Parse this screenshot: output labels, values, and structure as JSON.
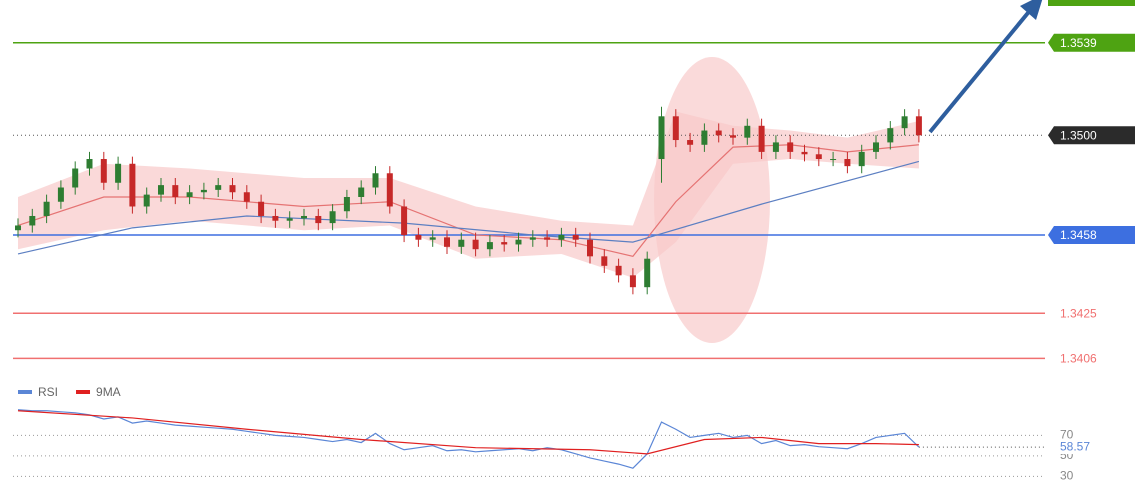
{
  "chart_data": [
    {
      "type": "candlestick",
      "ylim": [
        1.3399,
        1.3557
      ],
      "up_color": "#2e7d32",
      "down_color": "#c62828",
      "open": [
        1.346,
        1.3462,
        1.3466,
        1.3472,
        1.3478,
        1.3486,
        1.349,
        1.348,
        1.3488,
        1.347,
        1.3475,
        1.3479,
        1.3474,
        1.3476,
        1.3477,
        1.3479,
        1.3476,
        1.3472,
        1.3466,
        1.3464,
        1.3465,
        1.3466,
        1.3463,
        1.3468,
        1.3474,
        1.3478,
        1.3484,
        1.347,
        1.3458,
        1.3456,
        1.3457,
        1.3453,
        1.3456,
        1.3452,
        1.3455,
        1.3454,
        1.3456,
        1.3457,
        1.3456,
        1.3458,
        1.3456,
        1.3449,
        1.3445,
        1.3441,
        1.3436,
        1.349,
        1.3508,
        1.3498,
        1.3496,
        1.3502,
        1.35,
        1.3499,
        1.3504,
        1.3493,
        1.3497,
        1.3493,
        1.3492,
        1.349,
        1.349,
        1.3487,
        1.3493,
        1.3497,
        1.3503,
        1.3508
      ],
      "high": [
        1.3465,
        1.3469,
        1.3475,
        1.3481,
        1.3489,
        1.3493,
        1.3493,
        1.3491,
        1.3491,
        1.3478,
        1.3482,
        1.3482,
        1.3479,
        1.348,
        1.3482,
        1.3482,
        1.3479,
        1.3475,
        1.3469,
        1.3468,
        1.3469,
        1.3469,
        1.3471,
        1.3477,
        1.3481,
        1.3487,
        1.3487,
        1.3473,
        1.3461,
        1.346,
        1.346,
        1.3459,
        1.3459,
        1.3458,
        1.3458,
        1.3459,
        1.346,
        1.346,
        1.3461,
        1.3461,
        1.3459,
        1.3452,
        1.3448,
        1.3444,
        1.3451,
        1.3512,
        1.3511,
        1.3501,
        1.3505,
        1.3505,
        1.3503,
        1.3507,
        1.3507,
        1.35,
        1.35,
        1.3496,
        1.3495,
        1.3493,
        1.3493,
        1.3496,
        1.35,
        1.3506,
        1.3511,
        1.3511
      ],
      "low": [
        1.3457,
        1.3459,
        1.3463,
        1.3469,
        1.3475,
        1.3483,
        1.3477,
        1.3477,
        1.3467,
        1.3467,
        1.3472,
        1.3471,
        1.3471,
        1.3473,
        1.3474,
        1.3473,
        1.3469,
        1.3463,
        1.3461,
        1.3461,
        1.3462,
        1.346,
        1.346,
        1.3465,
        1.3471,
        1.3475,
        1.3467,
        1.3455,
        1.3453,
        1.3453,
        1.345,
        1.345,
        1.3449,
        1.3449,
        1.3451,
        1.3451,
        1.3453,
        1.3453,
        1.3453,
        1.3453,
        1.3446,
        1.3442,
        1.3438,
        1.3433,
        1.3433,
        1.348,
        1.3495,
        1.3493,
        1.3493,
        1.3497,
        1.3496,
        1.3496,
        1.349,
        1.349,
        1.349,
        1.3489,
        1.3487,
        1.3487,
        1.3484,
        1.3484,
        1.349,
        1.3494,
        1.35,
        1.3497
      ],
      "close": [
        1.3462,
        1.3466,
        1.3472,
        1.3478,
        1.3486,
        1.349,
        1.348,
        1.3488,
        1.347,
        1.3475,
        1.3479,
        1.3474,
        1.3476,
        1.3477,
        1.3479,
        1.3476,
        1.3472,
        1.3466,
        1.3464,
        1.3465,
        1.3466,
        1.3463,
        1.3468,
        1.3474,
        1.3478,
        1.3484,
        1.347,
        1.3458,
        1.3456,
        1.3457,
        1.3453,
        1.3456,
        1.3452,
        1.3455,
        1.3454,
        1.3456,
        1.3457,
        1.3456,
        1.3458,
        1.3456,
        1.3449,
        1.3445,
        1.3441,
        1.3436,
        1.3448,
        1.3508,
        1.3498,
        1.3496,
        1.3502,
        1.35,
        1.3499,
        1.3504,
        1.3493,
        1.3497,
        1.3493,
        1.3492,
        1.349,
        1.349,
        1.3487,
        1.3493,
        1.3497,
        1.3503,
        1.3508,
        1.35
      ],
      "band": {
        "color": "#f8c9c9",
        "x": [
          0,
          6,
          12,
          20,
          26,
          32,
          38,
          43,
          46,
          50,
          54,
          58,
          63
        ],
        "upper": [
          1.3474,
          1.3488,
          1.3486,
          1.3482,
          1.3482,
          1.347,
          1.3464,
          1.3462,
          1.351,
          1.3504,
          1.3502,
          1.3499,
          1.3506
        ],
        "lower": [
          1.3452,
          1.346,
          1.3464,
          1.346,
          1.3462,
          1.3448,
          1.345,
          1.344,
          1.3455,
          1.3488,
          1.349,
          1.3488,
          1.3486
        ]
      },
      "lines": [
        {
          "color": "#e57373",
          "x": [
            0,
            6,
            12,
            20,
            26,
            32,
            38,
            43,
            46,
            50,
            54,
            58,
            63
          ],
          "values": [
            1.3462,
            1.3474,
            1.3474,
            1.347,
            1.3472,
            1.3458,
            1.3456,
            1.3449,
            1.3472,
            1.3495,
            1.3496,
            1.3493,
            1.3496
          ]
        },
        {
          "color": "#5c7fc2",
          "x": [
            0,
            8,
            16,
            27,
            36,
            43,
            52,
            63
          ],
          "values": [
            1.345,
            1.3461,
            1.3466,
            1.3463,
            1.3458,
            1.3455,
            1.3471,
            1.3489
          ]
        }
      ],
      "levels": [
        {
          "value": 1.3539,
          "color": "#4ea312",
          "badge": true,
          "dotted": false
        },
        {
          "value": 1.35,
          "label": "1.3500",
          "color": "#2b2b2b",
          "badge": true,
          "dotted": true
        },
        {
          "value": 1.3458,
          "color": "#3d6fe0",
          "badge": true,
          "dotted": false
        },
        {
          "value": 1.3425,
          "color": "#f07070",
          "badge": false,
          "dotted": false
        },
        {
          "value": 1.3406,
          "color": "#f07070",
          "badge": false,
          "dotted": false
        }
      ]
    },
    {
      "type": "line",
      "ylim": [
        7,
        124
      ],
      "yticks": [
        70,
        50,
        30
      ],
      "series": [
        {
          "name": "RSI",
          "color": "#5b86d6",
          "x": [
            0,
            1,
            2,
            3,
            4,
            5,
            6,
            7,
            8,
            9,
            10,
            11,
            12,
            13,
            14,
            15,
            16,
            17,
            18,
            19,
            20,
            21,
            22,
            23,
            24,
            25,
            26,
            27,
            28,
            29,
            30,
            31,
            32,
            33,
            34,
            35,
            36,
            37,
            38,
            39,
            40,
            41,
            42,
            43,
            44,
            45,
            46,
            47,
            48,
            49,
            50,
            51,
            52,
            53,
            54,
            55,
            56,
            57,
            58,
            59,
            60,
            61,
            62,
            63
          ],
          "values": [
            95,
            94,
            94,
            93,
            92,
            90,
            86,
            88,
            82,
            84,
            82,
            80,
            79,
            78,
            77,
            76,
            74,
            72,
            70,
            69,
            68,
            66,
            64,
            66,
            63,
            72,
            62,
            56,
            58,
            60,
            55,
            56,
            54,
            55,
            56,
            57,
            55,
            58,
            56,
            52,
            48,
            45,
            42,
            38,
            52,
            83,
            76,
            68,
            70,
            72,
            68,
            70,
            62,
            65,
            60,
            61,
            59,
            58,
            57,
            62,
            68,
            70,
            72,
            58.57
          ]
        },
        {
          "name": "9MA",
          "color": "#e02020",
          "x": [
            0,
            8,
            16,
            24,
            32,
            40,
            44,
            48,
            52,
            56,
            60,
            63
          ],
          "values": [
            94,
            87,
            76,
            66,
            58,
            56,
            52,
            66,
            68,
            62,
            62,
            61
          ]
        }
      ]
    }
  ]
}
